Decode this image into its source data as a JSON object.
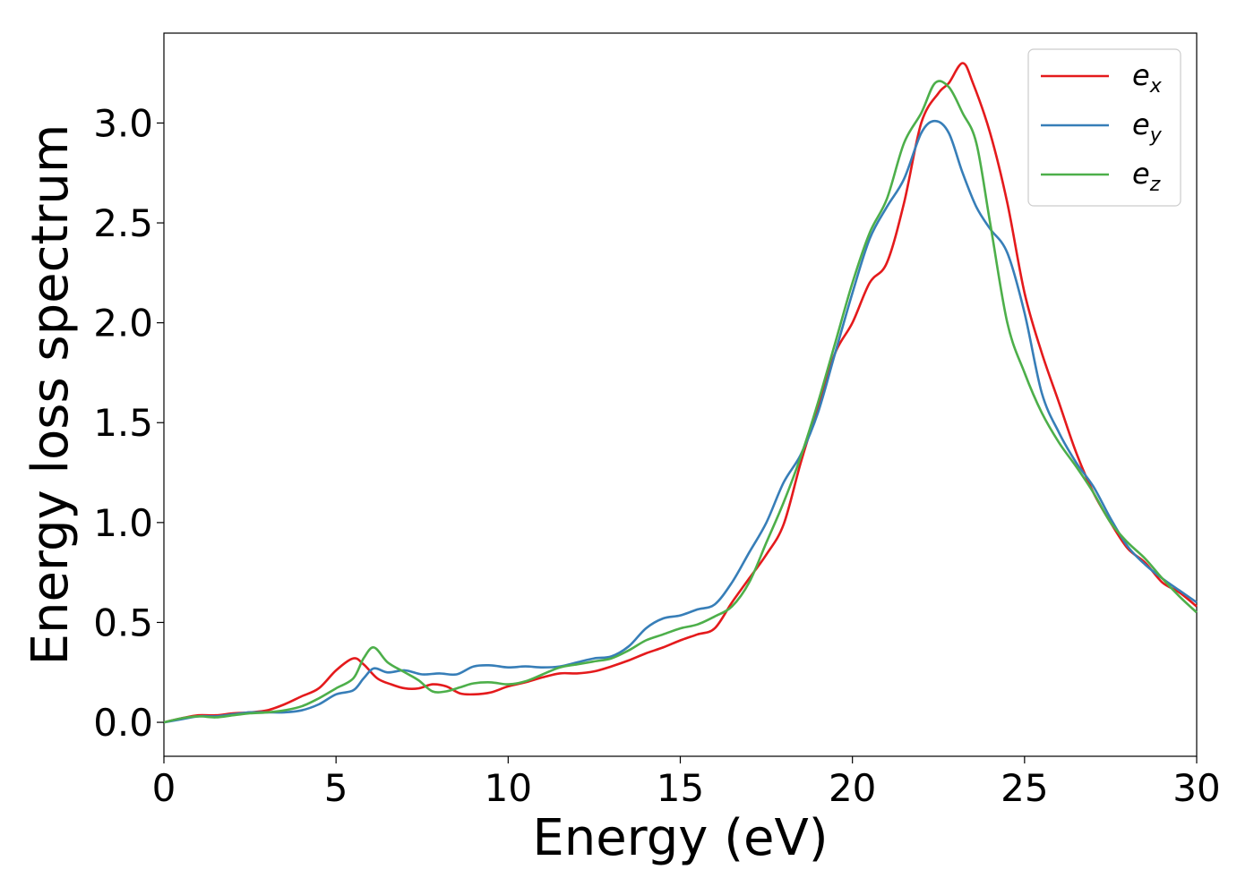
{
  "chart_data": {
    "type": "line",
    "xlabel": "Energy (eV)",
    "ylabel": "Energy loss spectrum",
    "xlim": [
      0,
      30
    ],
    "ylim": [
      -0.17,
      3.45
    ],
    "xticks": [
      0,
      5,
      10,
      15,
      20,
      25,
      30
    ],
    "xtick_labels": [
      "0",
      "5",
      "10",
      "15",
      "20",
      "25",
      "30"
    ],
    "yticks": [
      0.0,
      0.5,
      1.0,
      1.5,
      2.0,
      2.5,
      3.0
    ],
    "ytick_labels": [
      "0.0",
      "0.5",
      "1.0",
      "1.5",
      "2.0",
      "2.5",
      "3.0"
    ],
    "grid": false,
    "legend_position": "top-right",
    "series": [
      {
        "name": "e",
        "subscript": "x",
        "color": "#e41a1c",
        "points": [
          [
            0,
            0
          ],
          [
            0.5,
            0.02
          ],
          [
            1,
            0.035
          ],
          [
            1.5,
            0.035
          ],
          [
            2,
            0.045
          ],
          [
            2.5,
            0.05
          ],
          [
            3,
            0.06
          ],
          [
            3.5,
            0.09
          ],
          [
            4,
            0.13
          ],
          [
            4.5,
            0.17
          ],
          [
            5,
            0.26
          ],
          [
            5.5,
            0.32
          ],
          [
            5.8,
            0.29
          ],
          [
            6.2,
            0.22
          ],
          [
            6.6,
            0.19
          ],
          [
            7,
            0.17
          ],
          [
            7.4,
            0.17
          ],
          [
            7.8,
            0.19
          ],
          [
            8.2,
            0.18
          ],
          [
            8.6,
            0.145
          ],
          [
            9,
            0.14
          ],
          [
            9.5,
            0.15
          ],
          [
            10,
            0.18
          ],
          [
            10.5,
            0.2
          ],
          [
            11,
            0.225
          ],
          [
            11.5,
            0.245
          ],
          [
            12,
            0.245
          ],
          [
            12.5,
            0.255
          ],
          [
            13,
            0.28
          ],
          [
            13.5,
            0.31
          ],
          [
            14,
            0.345
          ],
          [
            14.5,
            0.375
          ],
          [
            15,
            0.41
          ],
          [
            15.5,
            0.44
          ],
          [
            16,
            0.47
          ],
          [
            16.5,
            0.6
          ],
          [
            17,
            0.72
          ],
          [
            17.5,
            0.84
          ],
          [
            18,
            0.99
          ],
          [
            18.5,
            1.3
          ],
          [
            19,
            1.58
          ],
          [
            19.5,
            1.85
          ],
          [
            20,
            2.0
          ],
          [
            20.5,
            2.2
          ],
          [
            21,
            2.3
          ],
          [
            21.5,
            2.6
          ],
          [
            22,
            3.0
          ],
          [
            22.5,
            3.15
          ],
          [
            22.8,
            3.2
          ],
          [
            23.2,
            3.3
          ],
          [
            23.5,
            3.2
          ],
          [
            24,
            2.95
          ],
          [
            24.5,
            2.6
          ],
          [
            25,
            2.15
          ],
          [
            25.5,
            1.85
          ],
          [
            26,
            1.6
          ],
          [
            26.5,
            1.35
          ],
          [
            27,
            1.15
          ],
          [
            27.5,
            1.0
          ],
          [
            28,
            0.87
          ],
          [
            28.5,
            0.8
          ],
          [
            29,
            0.7
          ],
          [
            29.5,
            0.65
          ],
          [
            30,
            0.58
          ]
        ]
      },
      {
        "name": "e",
        "subscript": "y",
        "color": "#377eb8",
        "points": [
          [
            0,
            0
          ],
          [
            0.5,
            0.015
          ],
          [
            1,
            0.03
          ],
          [
            1.5,
            0.03
          ],
          [
            2,
            0.04
          ],
          [
            2.5,
            0.05
          ],
          [
            3,
            0.05
          ],
          [
            3.5,
            0.05
          ],
          [
            4,
            0.06
          ],
          [
            4.5,
            0.09
          ],
          [
            5,
            0.14
          ],
          [
            5.5,
            0.16
          ],
          [
            5.8,
            0.22
          ],
          [
            6.1,
            0.27
          ],
          [
            6.5,
            0.25
          ],
          [
            7,
            0.26
          ],
          [
            7.5,
            0.24
          ],
          [
            8,
            0.245
          ],
          [
            8.5,
            0.24
          ],
          [
            9,
            0.28
          ],
          [
            9.5,
            0.285
          ],
          [
            10,
            0.275
          ],
          [
            10.5,
            0.28
          ],
          [
            11,
            0.275
          ],
          [
            11.5,
            0.28
          ],
          [
            12,
            0.3
          ],
          [
            12.5,
            0.32
          ],
          [
            13,
            0.33
          ],
          [
            13.5,
            0.38
          ],
          [
            14,
            0.47
          ],
          [
            14.5,
            0.52
          ],
          [
            15,
            0.535
          ],
          [
            15.5,
            0.565
          ],
          [
            16,
            0.59
          ],
          [
            16.5,
            0.7
          ],
          [
            17,
            0.85
          ],
          [
            17.5,
            1.0
          ],
          [
            18,
            1.2
          ],
          [
            18.5,
            1.34
          ],
          [
            19,
            1.55
          ],
          [
            19.5,
            1.85
          ],
          [
            20,
            2.15
          ],
          [
            20.5,
            2.42
          ],
          [
            21,
            2.58
          ],
          [
            21.5,
            2.72
          ],
          [
            22,
            2.95
          ],
          [
            22.4,
            3.01
          ],
          [
            22.8,
            2.95
          ],
          [
            23.2,
            2.75
          ],
          [
            23.6,
            2.58
          ],
          [
            24,
            2.47
          ],
          [
            24.5,
            2.35
          ],
          [
            25,
            2.05
          ],
          [
            25.5,
            1.65
          ],
          [
            26,
            1.45
          ],
          [
            26.5,
            1.3
          ],
          [
            27,
            1.18
          ],
          [
            27.5,
            1.02
          ],
          [
            28,
            0.88
          ],
          [
            28.5,
            0.79
          ],
          [
            29,
            0.72
          ],
          [
            29.5,
            0.66
          ],
          [
            30,
            0.6
          ]
        ]
      },
      {
        "name": "e",
        "subscript": "z",
        "color": "#4daf4a",
        "points": [
          [
            0,
            0
          ],
          [
            0.5,
            0.02
          ],
          [
            1,
            0.03
          ],
          [
            1.5,
            0.025
          ],
          [
            2,
            0.035
          ],
          [
            2.5,
            0.045
          ],
          [
            3,
            0.05
          ],
          [
            3.5,
            0.06
          ],
          [
            4,
            0.08
          ],
          [
            4.5,
            0.12
          ],
          [
            5,
            0.17
          ],
          [
            5.5,
            0.22
          ],
          [
            5.8,
            0.32
          ],
          [
            6.1,
            0.375
          ],
          [
            6.5,
            0.3
          ],
          [
            7,
            0.25
          ],
          [
            7.4,
            0.21
          ],
          [
            7.8,
            0.155
          ],
          [
            8.2,
            0.155
          ],
          [
            8.6,
            0.175
          ],
          [
            9,
            0.195
          ],
          [
            9.5,
            0.2
          ],
          [
            10,
            0.19
          ],
          [
            10.5,
            0.205
          ],
          [
            11,
            0.24
          ],
          [
            11.5,
            0.275
          ],
          [
            12,
            0.29
          ],
          [
            12.5,
            0.305
          ],
          [
            13,
            0.32
          ],
          [
            13.5,
            0.36
          ],
          [
            14,
            0.41
          ],
          [
            14.5,
            0.44
          ],
          [
            15,
            0.47
          ],
          [
            15.5,
            0.49
          ],
          [
            16,
            0.53
          ],
          [
            16.5,
            0.58
          ],
          [
            17,
            0.7
          ],
          [
            17.5,
            0.9
          ],
          [
            18,
            1.1
          ],
          [
            18.5,
            1.33
          ],
          [
            19,
            1.6
          ],
          [
            19.5,
            1.9
          ],
          [
            20,
            2.2
          ],
          [
            20.5,
            2.45
          ],
          [
            21,
            2.62
          ],
          [
            21.5,
            2.9
          ],
          [
            22,
            3.05
          ],
          [
            22.4,
            3.2
          ],
          [
            22.8,
            3.18
          ],
          [
            23.2,
            3.05
          ],
          [
            23.6,
            2.9
          ],
          [
            24,
            2.5
          ],
          [
            24.5,
            2.0
          ],
          [
            25,
            1.75
          ],
          [
            25.5,
            1.55
          ],
          [
            26,
            1.4
          ],
          [
            26.5,
            1.28
          ],
          [
            27,
            1.15
          ],
          [
            27.5,
            1.0
          ],
          [
            28,
            0.9
          ],
          [
            28.5,
            0.82
          ],
          [
            29,
            0.72
          ],
          [
            29.5,
            0.63
          ],
          [
            30,
            0.55
          ]
        ]
      }
    ]
  }
}
